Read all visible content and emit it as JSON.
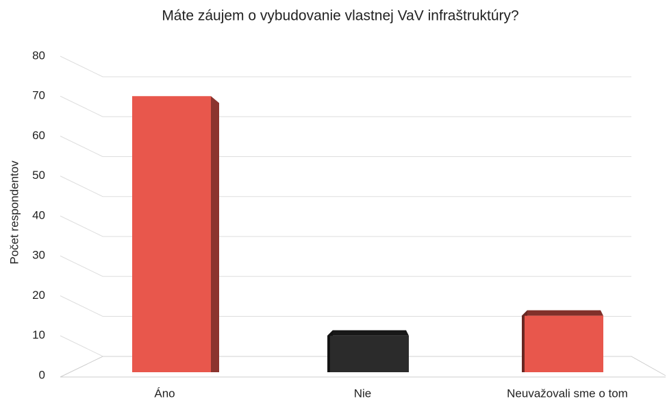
{
  "chart_data": {
    "type": "bar3d",
    "title": "Máte záujem o vybudovanie vlastnej VaV infraštruktúry?",
    "y_label": "Počet respondentov",
    "categories": [
      "Áno",
      "Nie",
      "Neuvažovali sme o tom"
    ],
    "values": [
      70,
      10,
      15
    ],
    "colors": [
      "#e8574c",
      "#2b2b2b",
      "#e8574c"
    ],
    "ylim": [
      0,
      80
    ],
    "yticks": [
      0,
      10,
      20,
      30,
      40,
      50,
      60,
      70,
      80
    ],
    "grid": true
  }
}
